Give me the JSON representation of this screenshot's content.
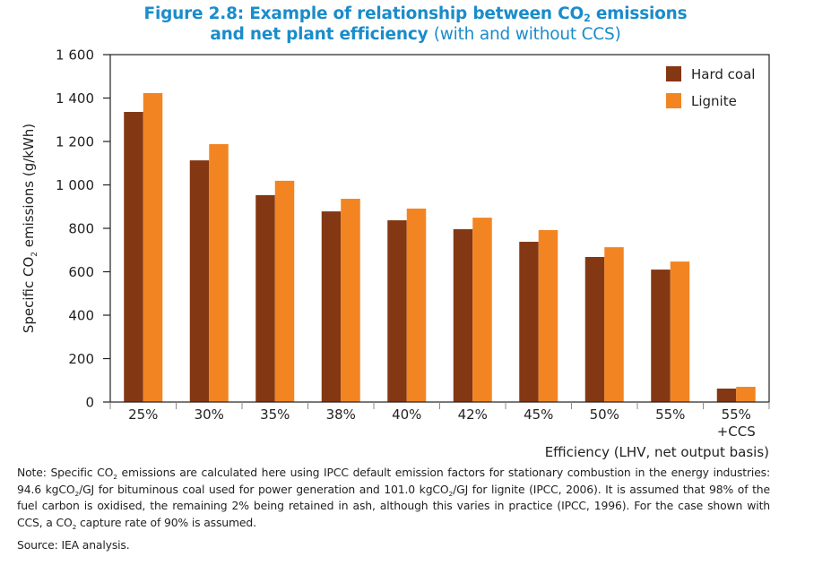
{
  "figure": {
    "title_bold_1": "Figure 2.8: Example of relationship between CO",
    "title_sub": "2",
    "title_bold_2": " emissions",
    "title_line2_bold": "and net plant efficiency ",
    "title_line2_light": "(with and without CCS)"
  },
  "colors": {
    "hard_coal": "#843713",
    "lignite": "#f28522",
    "title": "#1a8ccb",
    "axis": "#231f20"
  },
  "chart_data": {
    "type": "bar",
    "title": "Figure 2.8: Example of relationship between CO2 emissions and net plant efficiency (with and without CCS)",
    "xlabel": "Efficiency (LHV, net output basis)",
    "ylabel_prefix": "Specific CO",
    "ylabel_sub": "2",
    "ylabel_suffix": " emissions (g/kWh)",
    "ylabel": "Specific CO2 emissions (g/kWh)",
    "ylim": [
      0,
      1600
    ],
    "yticks": [
      0,
      200,
      400,
      600,
      800,
      1000,
      1200,
      1400,
      1600
    ],
    "ytick_labels": [
      "0",
      "200",
      "400",
      "600",
      "800",
      "1 000",
      "1 200",
      "1 400",
      "1 600"
    ],
    "categories": [
      "25%",
      "30%",
      "35%",
      "38%",
      "40%",
      "42%",
      "45%",
      "50%",
      "55%",
      "55% +CCS"
    ],
    "category_labels": [
      [
        "25%"
      ],
      [
        "30%"
      ],
      [
        "35%"
      ],
      [
        "38%"
      ],
      [
        "40%"
      ],
      [
        "42%"
      ],
      [
        "45%"
      ],
      [
        "50%"
      ],
      [
        "55%"
      ],
      [
        "55%",
        "+CCS"
      ]
    ],
    "series": [
      {
        "name": "Hard coal",
        "color": "#843713",
        "values": [
          1336,
          1113,
          953,
          878,
          837,
          796,
          738,
          668,
          610,
          62
        ]
      },
      {
        "name": "Lignite",
        "color": "#f28522",
        "values": [
          1423,
          1188,
          1019,
          936,
          891,
          849,
          792,
          713,
          647,
          70
        ]
      }
    ],
    "legend": {
      "position": "top-right",
      "entries": [
        "Hard coal",
        "Lignite"
      ]
    },
    "grid": false
  },
  "note": {
    "p1": "Note: Specific CO",
    "p2": " emissions are calculated here using IPCC default emission factors for stationary combustion in the energy industries: 94.6 kgCO",
    "p3": "/GJ for bituminous coal used for power generation and 101.0 kgCO",
    "p4": "/GJ for lignite (IPCC, 2006). It is assumed that 98% of the fuel carbon is oxidised, the remaining 2% being retained in ash, although this varies in practice (IPCC, 1996). For the case shown with CCS, a CO",
    "p5": " capture rate of 90% is assumed.",
    "sub": "2"
  },
  "source": "Source: IEA analysis."
}
